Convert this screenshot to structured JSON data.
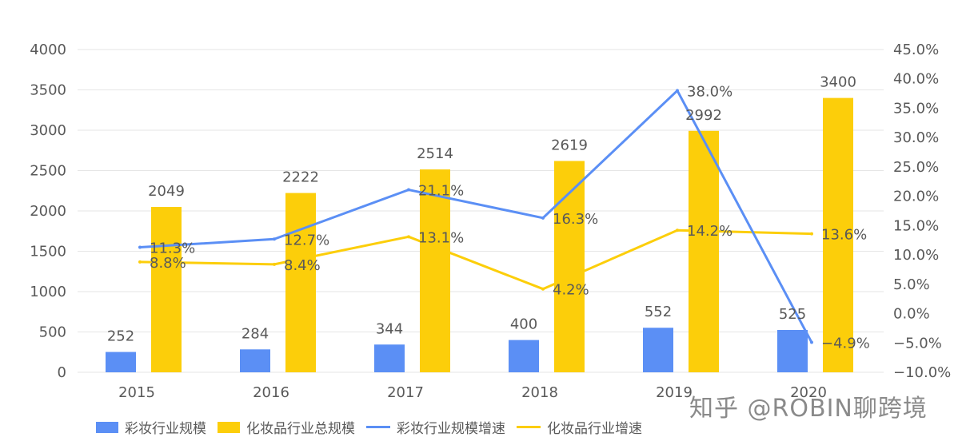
{
  "colors": {
    "makeup_bar": "#5B8FF5",
    "cosmetics_bar": "#FCCE0A",
    "makeup_line": "#5B8FF5",
    "cosmetics_line": "#FCCE0A",
    "grid": "#E6E6E6",
    "text": "#595959"
  },
  "watermark": "知乎 @ROBIN聊跨境",
  "chart_data": {
    "type": "bar",
    "categories": [
      "2015",
      "2016",
      "2017",
      "2018",
      "2019",
      "2020"
    ],
    "series": [
      {
        "name": "彩妆行业规模",
        "type": "bar",
        "axis": "left",
        "values": [
          252,
          284,
          344,
          400,
          552,
          525
        ],
        "labels": [
          "252",
          "284",
          "344",
          "400",
          "552",
          "525"
        ]
      },
      {
        "name": "化妆品行业总规模",
        "type": "bar",
        "axis": "left",
        "values": [
          2049,
          2222,
          2514,
          2619,
          2992,
          3400
        ],
        "labels": [
          "2049",
          "2222",
          "2514",
          "2619",
          "2992",
          "3400"
        ]
      },
      {
        "name": "彩妆行业规模增速",
        "type": "line",
        "axis": "right",
        "values": [
          11.3,
          12.7,
          21.1,
          16.3,
          38.0,
          -4.9
        ],
        "labels": [
          "11.3%",
          "12.7%",
          "21.1%",
          "16.3%",
          "38.0%",
          "-4.9%"
        ]
      },
      {
        "name": "化妆品行业增速",
        "type": "line",
        "axis": "right",
        "values": [
          8.8,
          8.4,
          13.1,
          4.2,
          14.2,
          13.6
        ],
        "labels": [
          "8.8%",
          "8.4%",
          "13.1%",
          "4.2%",
          "14.2%",
          "13.6%"
        ]
      }
    ],
    "y_left": {
      "range": [
        0,
        4000
      ],
      "ticks": [
        "0",
        "500",
        "1000",
        "1500",
        "2000",
        "2500",
        "3000",
        "3500",
        "4000"
      ]
    },
    "y_right": {
      "range": [
        -10,
        45
      ],
      "ticks": [
        "-10.0%",
        "-5.0%",
        "0.0%",
        "5.0%",
        "10.0%",
        "15.0%",
        "20.0%",
        "25.0%",
        "30.0%",
        "35.0%",
        "40.0%",
        "45.0%"
      ]
    },
    "grid": true,
    "legend": "bottom-left"
  }
}
